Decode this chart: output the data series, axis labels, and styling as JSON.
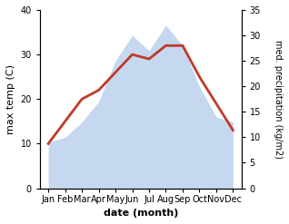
{
  "months": [
    "Jan",
    "Feb",
    "Mar",
    "Apr",
    "May",
    "Jun",
    "Jul",
    "Aug",
    "Sep",
    "Oct",
    "Nov",
    "Dec"
  ],
  "temperature": [
    10,
    15,
    20,
    22,
    26,
    30,
    29,
    32,
    32,
    25,
    19,
    13
  ],
  "precipitation": [
    9,
    10,
    13,
    17,
    25,
    30,
    27,
    32,
    28,
    20,
    14,
    13
  ],
  "temp_color": "#c0392b",
  "precip_color": "#c5d8f0",
  "title": "",
  "xlabel": "date (month)",
  "ylabel_left": "max temp (C)",
  "ylabel_right": "med. precipitation (kg/m2)",
  "ylim_left": [
    0,
    40
  ],
  "ylim_right": [
    0,
    35
  ],
  "yticks_left": [
    0,
    10,
    20,
    30,
    40
  ],
  "yticks_right": [
    0,
    5,
    10,
    15,
    20,
    25,
    30,
    35
  ],
  "background_color": "#ffffff",
  "line_width": 2.0
}
